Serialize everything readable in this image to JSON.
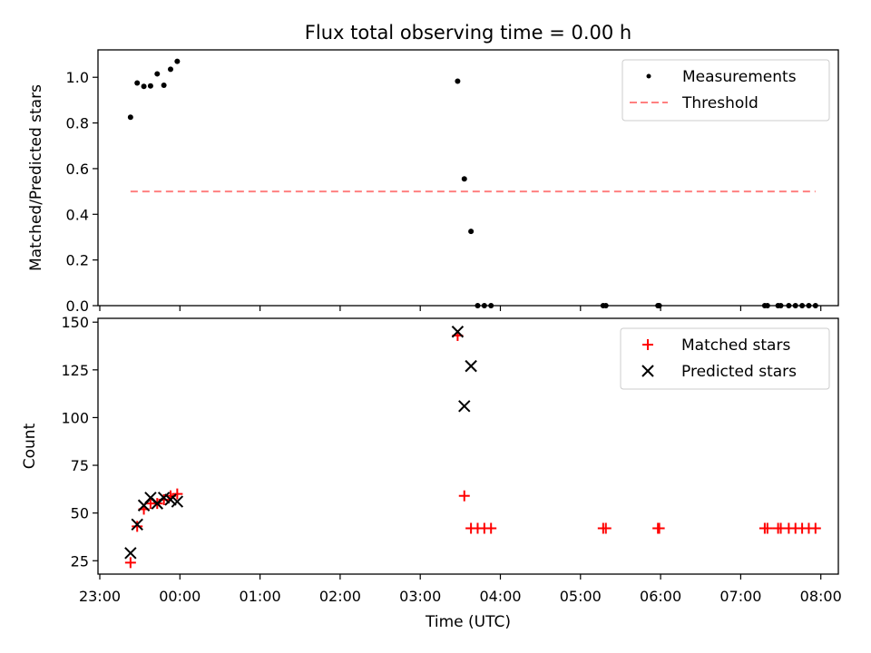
{
  "title": "Flux total observing time = 0.00 h",
  "chart_data": [
    {
      "type": "scatter",
      "ylabel": "Matched/Predicted stars",
      "ylim": [
        0,
        1.12
      ],
      "yticks": [
        0.0,
        0.2,
        0.4,
        0.6,
        0.8,
        1.0
      ],
      "ytick_labels": [
        "0.0",
        "0.2",
        "0.4",
        "0.6",
        "0.8",
        "1.0"
      ],
      "legend_position": "top-right",
      "series": [
        {
          "name": "Measurements",
          "marker": "dot",
          "color": "#000000",
          "points": [
            [
              "23:23",
              0.825
            ],
            [
              "23:28",
              0.975
            ],
            [
              "23:33",
              0.96
            ],
            [
              "23:38",
              0.962
            ],
            [
              "23:43",
              1.015
            ],
            [
              "23:48",
              0.965
            ],
            [
              "23:53",
              1.035
            ],
            [
              "23:58",
              1.07
            ],
            [
              "03:28",
              0.983
            ],
            [
              "03:33",
              0.555
            ],
            [
              "03:38",
              0.325
            ],
            [
              "03:43",
              0.0
            ],
            [
              "03:48",
              0.0
            ],
            [
              "03:53",
              0.0
            ],
            [
              "05:17",
              0.0
            ],
            [
              "05:19",
              0.0
            ],
            [
              "05:58",
              0.0
            ],
            [
              "05:59",
              0.0
            ],
            [
              "07:18",
              0.0
            ],
            [
              "07:20",
              0.0
            ],
            [
              "07:28",
              0.0
            ],
            [
              "07:30",
              0.0
            ],
            [
              "07:36",
              0.0
            ],
            [
              "07:41",
              0.0
            ],
            [
              "07:46",
              0.0
            ],
            [
              "07:51",
              0.0
            ],
            [
              "07:56",
              0.0
            ]
          ]
        },
        {
          "name": "Threshold",
          "marker": "dashed-line",
          "color": "#ff8080",
          "points": [
            [
              "23:23",
              0.5
            ],
            [
              "07:56",
              0.5
            ]
          ]
        }
      ]
    },
    {
      "type": "scatter",
      "xlabel": "Time (UTC)",
      "ylabel": "Count",
      "ylim": [
        18,
        152
      ],
      "yticks": [
        25,
        50,
        75,
        100,
        125,
        150
      ],
      "ytick_labels": [
        "25",
        "50",
        "75",
        "100",
        "125",
        "150"
      ],
      "legend_position": "top-right",
      "series": [
        {
          "name": "Matched stars",
          "marker": "plus",
          "color": "#ff0000",
          "points": [
            [
              "23:23",
              24
            ],
            [
              "23:28",
              43
            ],
            [
              "23:33",
              52
            ],
            [
              "23:38",
              55
            ],
            [
              "23:43",
              55
            ],
            [
              "23:48",
              57
            ],
            [
              "23:53",
              59
            ],
            [
              "23:58",
              60
            ],
            [
              "03:28",
              143
            ],
            [
              "03:33",
              59
            ],
            [
              "03:38",
              42
            ],
            [
              "03:43",
              42
            ],
            [
              "03:48",
              42
            ],
            [
              "03:53",
              42
            ],
            [
              "05:17",
              42
            ],
            [
              "05:19",
              42
            ],
            [
              "05:58",
              42
            ],
            [
              "05:59",
              42
            ],
            [
              "07:18",
              42
            ],
            [
              "07:20",
              42
            ],
            [
              "07:28",
              42
            ],
            [
              "07:30",
              42
            ],
            [
              "07:36",
              42
            ],
            [
              "07:41",
              42
            ],
            [
              "07:46",
              42
            ],
            [
              "07:51",
              42
            ],
            [
              "07:56",
              42
            ]
          ]
        },
        {
          "name": "Predicted stars",
          "marker": "x",
          "color": "#000000",
          "points": [
            [
              "23:23",
              29
            ],
            [
              "23:28",
              44
            ],
            [
              "23:33",
              54
            ],
            [
              "23:38",
              58
            ],
            [
              "23:43",
              55
            ],
            [
              "23:48",
              58
            ],
            [
              "23:53",
              57
            ],
            [
              "23:58",
              56
            ],
            [
              "03:28",
              145
            ],
            [
              "03:33",
              106
            ],
            [
              "03:38",
              127
            ]
          ]
        }
      ],
      "xticks": [
        "23:00",
        "00:00",
        "01:00",
        "02:00",
        "03:00",
        "04:00",
        "05:00",
        "06:00",
        "07:00",
        "08:00"
      ]
    }
  ]
}
